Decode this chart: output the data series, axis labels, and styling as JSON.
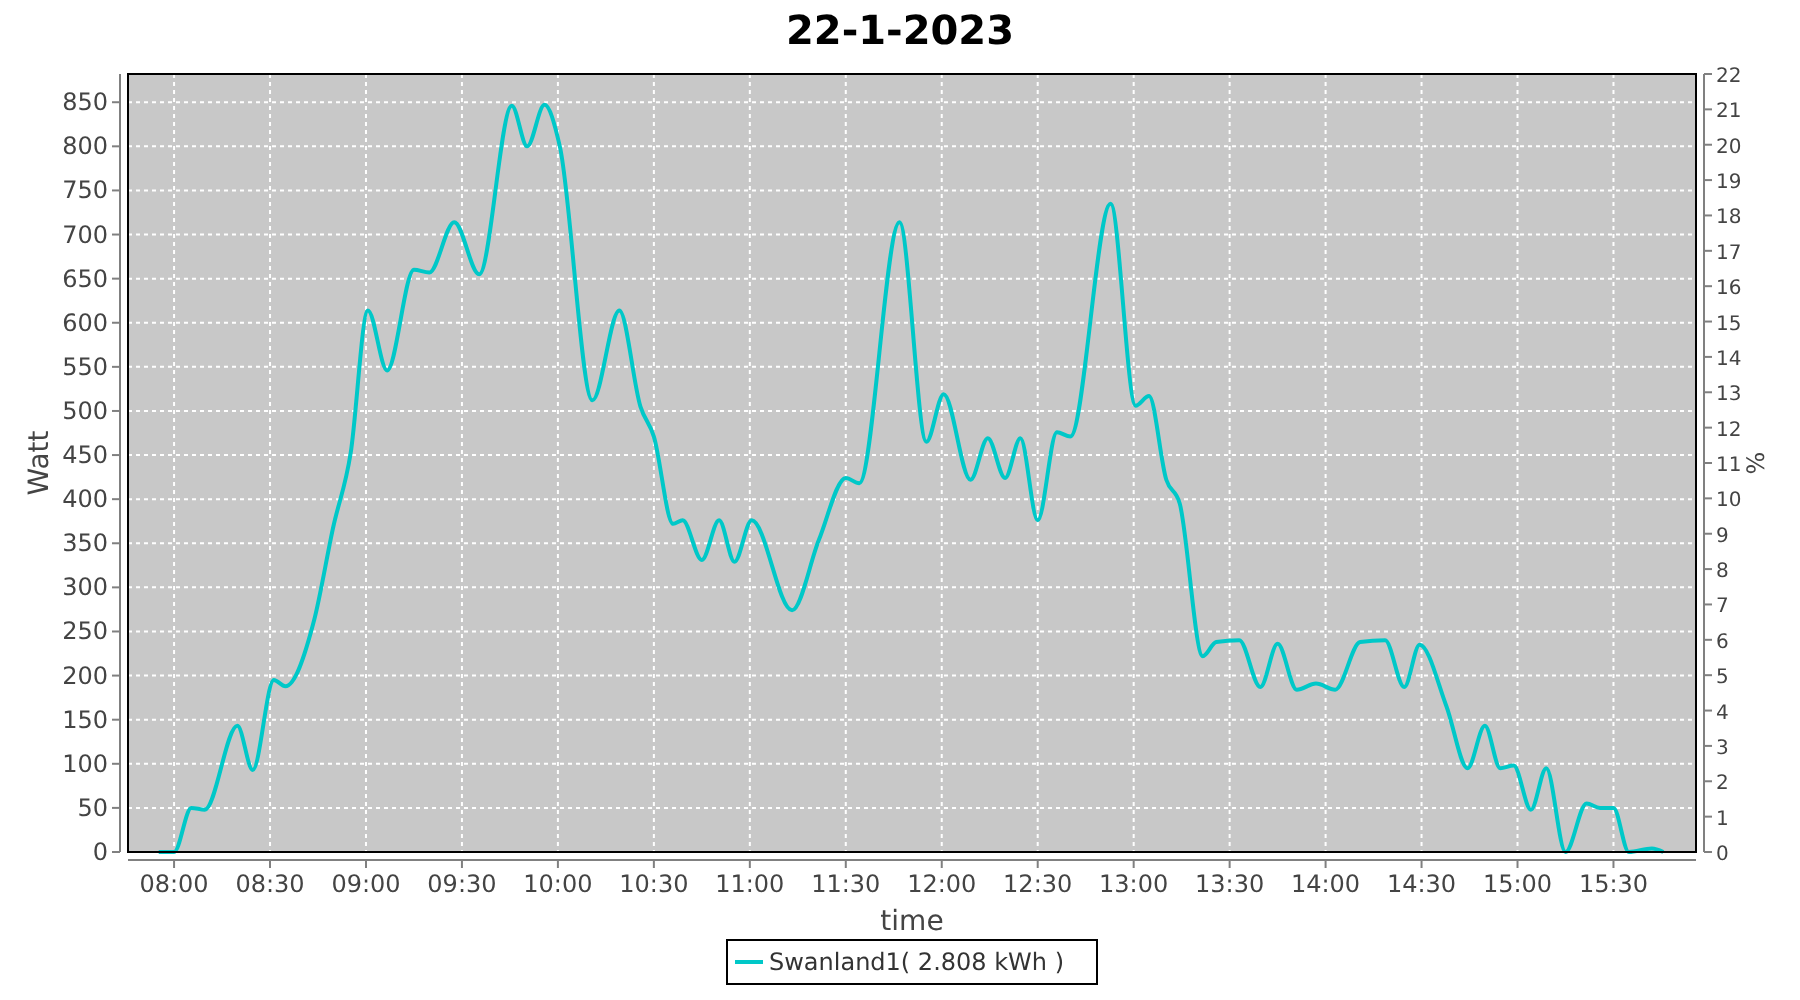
{
  "chart_data": {
    "type": "line",
    "title": "22-1-2023",
    "xlabel": "time",
    "ylabel": "Watt",
    "y2label": "%",
    "x": [
      7.92,
      8.0,
      8.09,
      8.16,
      8.33,
      8.41,
      8.52,
      8.58,
      8.73,
      8.83,
      8.92,
      9.01,
      9.11,
      9.25,
      9.33,
      9.46,
      9.59,
      9.76,
      9.84,
      9.93,
      10.01,
      10.18,
      10.32,
      10.43,
      10.5,
      10.6,
      10.65,
      10.75,
      10.84,
      10.92,
      11.01,
      11.22,
      11.36,
      11.5,
      11.57,
      11.78,
      11.92,
      12.01,
      12.15,
      12.24,
      12.33,
      12.41,
      12.5,
      12.6,
      12.67,
      12.88,
      13.01,
      13.08,
      13.17,
      13.24,
      13.36,
      13.43,
      13.55,
      13.66,
      13.75,
      13.85,
      13.95,
      14.05,
      14.18,
      14.31,
      14.41,
      14.49,
      14.63,
      14.74,
      14.83,
      14.91,
      14.98,
      15.07,
      15.15,
      15.25,
      15.36,
      15.43,
      15.5,
      15.58,
      15.7,
      15.76
    ],
    "series": [
      {
        "name": "Swanland1( 2.808 kWh )",
        "color": "#00c8c8",
        "values": [
          0,
          0,
          50,
          48,
          143,
          93,
          195,
          188,
          263,
          369,
          452,
          614,
          546,
          660,
          657,
          714,
          655,
          846,
          800,
          847,
          800,
          512,
          614,
          505,
          471,
          372,
          376,
          331,
          376,
          329,
          376,
          274,
          354,
          424,
          418,
          714,
          465,
          519,
          422,
          469,
          424,
          469,
          376,
          476,
          471,
          735,
          506,
          517,
          422,
          395,
          222,
          238,
          240,
          187,
          236,
          184,
          191,
          184,
          238,
          240,
          187,
          235,
          165,
          95,
          143,
          95,
          98,
          48,
          95,
          0,
          55,
          50,
          50,
          0,
          4,
          0
        ]
      }
    ],
    "xlim": [
      7.76,
      15.93
    ],
    "xticks": [
      {
        "value": 8,
        "label": "08:00"
      },
      {
        "value": 8.5,
        "label": "08:30"
      },
      {
        "value": 9,
        "label": "09:00"
      },
      {
        "value": 9.5,
        "label": "09:30"
      },
      {
        "value": 10,
        "label": "10:00"
      },
      {
        "value": 10.5,
        "label": "10:30"
      },
      {
        "value": 11,
        "label": "11:00"
      },
      {
        "value": 11.5,
        "label": "11:30"
      },
      {
        "value": 12,
        "label": "12:00"
      },
      {
        "value": 12.5,
        "label": "12:30"
      },
      {
        "value": 13,
        "label": "13:00"
      },
      {
        "value": 13.5,
        "label": "13:30"
      },
      {
        "value": 14,
        "label": "14:00"
      },
      {
        "value": 14.5,
        "label": "14:30"
      },
      {
        "value": 15,
        "label": "15:00"
      },
      {
        "value": 15.5,
        "label": "15:30"
      }
    ],
    "ylim": [
      0,
      882
    ],
    "yticks": [
      0,
      50,
      100,
      150,
      200,
      250,
      300,
      350,
      400,
      450,
      500,
      550,
      600,
      650,
      700,
      750,
      800,
      850
    ],
    "y2lim": [
      0,
      22
    ],
    "y2ticks": [
      0,
      1,
      2,
      3,
      4,
      5,
      6,
      7,
      8,
      9,
      10,
      11,
      12,
      13,
      14,
      15,
      16,
      17,
      18,
      19,
      20,
      21,
      22
    ],
    "grid": true,
    "legend": "bottom",
    "line_style": "solid",
    "marker": "none"
  }
}
